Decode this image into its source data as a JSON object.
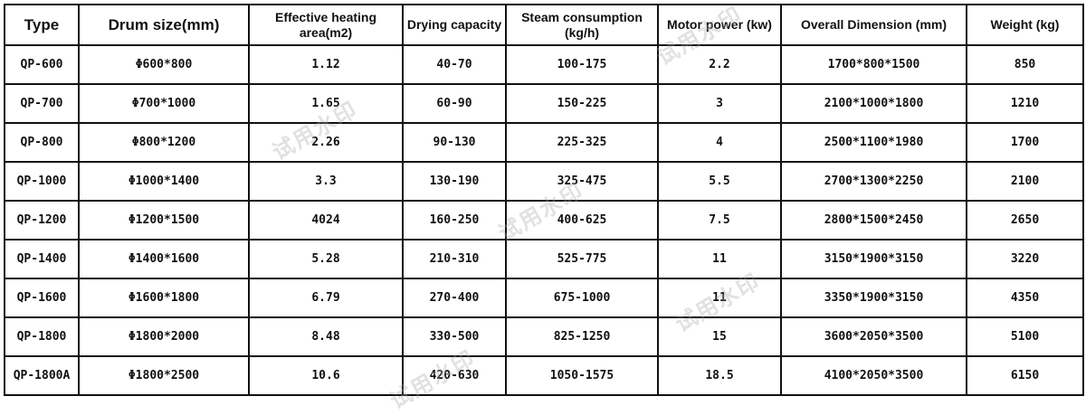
{
  "table": {
    "headers": [
      "Type",
      "Drum size(mm)",
      "Effective heating area(m2)",
      "Drying capacity",
      "Steam consumption (kg/h)",
      "Motor power (kw)",
      "Overall Dimension (mm)",
      "Weight (kg)"
    ],
    "rows": [
      [
        "QP-600",
        "Φ600*800",
        "1.12",
        "40-70",
        "100-175",
        "2.2",
        "1700*800*1500",
        "850"
      ],
      [
        "QP-700",
        "Φ700*1000",
        "1.65",
        "60-90",
        "150-225",
        "3",
        "2100*1000*1800",
        "1210"
      ],
      [
        "QP-800",
        "Φ800*1200",
        "2.26",
        "90-130",
        "225-325",
        "4",
        "2500*1100*1980",
        "1700"
      ],
      [
        "QP-1000",
        "Φ1000*1400",
        "3.3",
        "130-190",
        "325-475",
        "5.5",
        "2700*1300*2250",
        "2100"
      ],
      [
        "QP-1200",
        "Φ1200*1500",
        "4024",
        "160-250",
        "400-625",
        "7.5",
        "2800*1500*2450",
        "2650"
      ],
      [
        "QP-1400",
        "Φ1400*1600",
        "5.28",
        "210-310",
        "525-775",
        "11",
        "3150*1900*3150",
        "3220"
      ],
      [
        "QP-1600",
        "Φ1600*1800",
        "6.79",
        "270-400",
        "675-1000",
        "11",
        "3350*1900*3150",
        "4350"
      ],
      [
        "QP-1800",
        "Φ1800*2000",
        "8.48",
        "330-500",
        "825-1250",
        "15",
        "3600*2050*3500",
        "5100"
      ],
      [
        "QP-1800A",
        "Φ1800*2500",
        "10.6",
        "420-630",
        "1050-1575",
        "18.5",
        "4100*2050*3500",
        "6150"
      ]
    ]
  },
  "watermark": {
    "text": "试用水印"
  }
}
